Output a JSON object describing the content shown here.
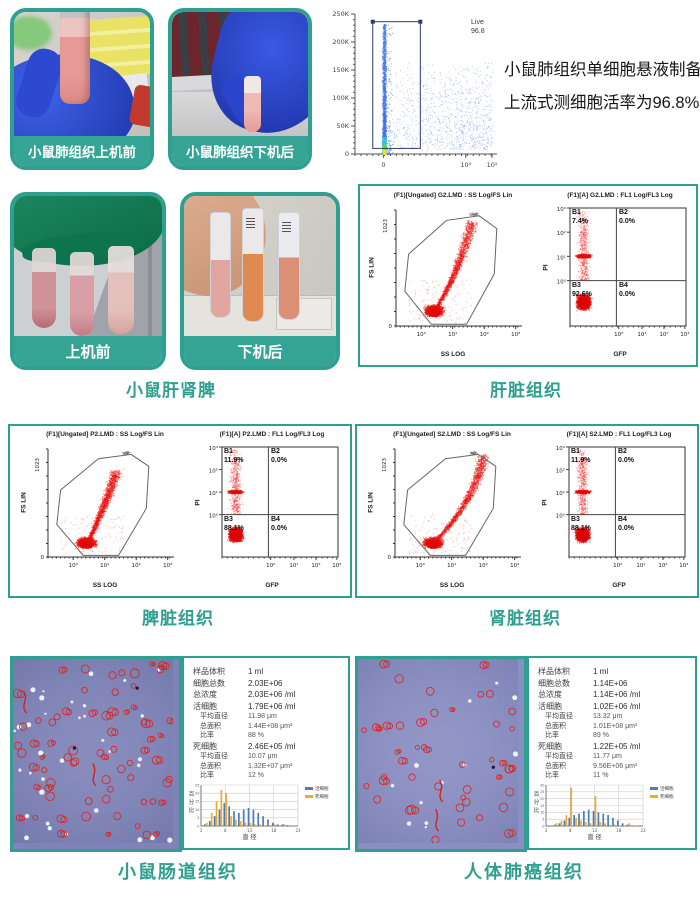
{
  "accent": "#2f9f90",
  "row1": {
    "photo_before_label": "小鼠肺组织上机前",
    "photo_after_label": "小鼠肺组织下机后",
    "desc_line1": "小鼠肺组织单细胞悬液制备",
    "desc_line2": "上流式测细胞活率为96.8%"
  },
  "row2": {
    "photo_before_label": "上机前",
    "photo_after_label": "下机后",
    "caption": "小鼠肝肾脾"
  },
  "chart_data": {
    "viability": {
      "type": "scatter",
      "gate_label": "Live",
      "gate_value": "96.8",
      "y_ticks": [
        "250K",
        "200K",
        "150K",
        "100K",
        "50K",
        "0"
      ],
      "x_ticks": [
        "0",
        "10⁴",
        "10⁵"
      ],
      "note": "dense vertical streak of viable cells inside rectangular Live gate, 96.8% live"
    },
    "flow_panels": [
      {
        "caption": "肝脏组织",
        "scatter": {
          "type": "scatter",
          "title": "(F1)[Ungated] G2.LMD : SS Log/FS Lin",
          "xlabel": "SS LOG",
          "ylabel": "FS LIN",
          "y_ticks": [
            "1023",
            "0"
          ],
          "x_ticks": [
            "10⁰",
            "10¹",
            "10²",
            "10³"
          ],
          "seed": 7,
          "arm_ctrl": [
            0.5,
            0.52
          ],
          "arm_end": [
            0.6,
            0.1
          ],
          "gate": [
            [
              0.28,
              0.985
            ],
            [
              0.07,
              0.7
            ],
            [
              0.1,
              0.38
            ],
            [
              0.4,
              0.09
            ],
            [
              0.66,
              0.05
            ],
            [
              0.8,
              0.16
            ],
            [
              0.78,
              0.55
            ],
            [
              0.56,
              0.985
            ]
          ]
        },
        "quad": {
          "type": "scatter",
          "title": "(F1)[A] G2.LMD : FL1 Log/FL3 Log",
          "xlabel": "GFP",
          "ylabel": "PI",
          "y_ticks": [
            "10³",
            "10²",
            "10¹",
            "10⁰"
          ],
          "x_ticks": [
            "10⁰",
            "10¹",
            "10²",
            "10³"
          ],
          "seed": 21,
          "quadrants": [
            {
              "name": "B1",
              "value": "7.4%"
            },
            {
              "name": "B2",
              "value": "0.0%"
            },
            {
              "name": "B3",
              "value": "92.6%"
            },
            {
              "name": "B4",
              "value": "0.0%"
            }
          ]
        }
      },
      {
        "caption": "脾脏组织",
        "scatter": {
          "type": "scatter",
          "title": "(F1)[Ungated] P2.LMD : SS Log/FS Lin",
          "xlabel": "SS LOG",
          "ylabel": "FS LIN",
          "y_ticks": [
            "1023",
            "0"
          ],
          "x_ticks": [
            "10⁰",
            "10¹",
            "10²",
            "10³"
          ],
          "seed": 13,
          "arm_ctrl": [
            0.44,
            0.56
          ],
          "arm_end": [
            0.54,
            0.2
          ],
          "gate": [
            [
              0.28,
              0.985
            ],
            [
              0.07,
              0.7
            ],
            [
              0.1,
              0.38
            ],
            [
              0.4,
              0.09
            ],
            [
              0.66,
              0.05
            ],
            [
              0.8,
              0.16
            ],
            [
              0.78,
              0.55
            ],
            [
              0.56,
              0.985
            ]
          ]
        },
        "quad": {
          "type": "scatter",
          "title": "(F1)[A] P2.LMD : FL1 Log/FL3 Log",
          "xlabel": "GFP",
          "ylabel": "PI",
          "y_ticks": [
            "10³",
            "10²",
            "10¹",
            "10⁰"
          ],
          "x_ticks": [
            "10⁰",
            "10¹",
            "10²",
            "10³"
          ],
          "seed": 31,
          "quadrants": [
            {
              "name": "B1",
              "value": "11.9%"
            },
            {
              "name": "B2",
              "value": "0.0%"
            },
            {
              "name": "B3",
              "value": "88.1%"
            },
            {
              "name": "B4",
              "value": "0.0%"
            }
          ]
        }
      },
      {
        "caption": "肾脏组织",
        "scatter": {
          "type": "scatter",
          "title": "(F1)[Ungated] S2.LMD : SS Log/FS Lin",
          "xlabel": "SS LOG",
          "ylabel": "FS LIN",
          "y_ticks": [
            "1023",
            "0"
          ],
          "x_ticks": [
            "10⁰",
            "10¹",
            "10²",
            "10³"
          ],
          "seed": 5,
          "arm_ctrl": [
            0.62,
            0.5
          ],
          "arm_end": [
            0.7,
            0.06
          ],
          "gate": [
            [
              0.28,
              0.985
            ],
            [
              0.07,
              0.7
            ],
            [
              0.1,
              0.38
            ],
            [
              0.4,
              0.09
            ],
            [
              0.66,
              0.05
            ],
            [
              0.8,
              0.16
            ],
            [
              0.78,
              0.55
            ],
            [
              0.56,
              0.985
            ]
          ]
        },
        "quad": {
          "type": "scatter",
          "title": "(F1)[A] S2.LMD : FL1 Log/FL3 Log",
          "xlabel": "GFP",
          "ylabel": "PI",
          "y_ticks": [
            "10³",
            "10²",
            "10¹",
            "10⁰"
          ],
          "x_ticks": [
            "10⁰",
            "10¹",
            "10²",
            "10³"
          ],
          "seed": 41,
          "quadrants": [
            {
              "name": "B1",
              "value": "11.9%"
            },
            {
              "name": "B2",
              "value": "0.0%"
            },
            {
              "name": "B3",
              "value": "88.1%"
            },
            {
              "name": "B4",
              "value": "0.0%"
            }
          ]
        }
      }
    ],
    "count_histograms": [
      {
        "type": "bar",
        "ylabel": "百分比",
        "xlabel": "直 径",
        "legend": [
          "活细胞",
          "死细胞"
        ],
        "colors": [
          "#4a7ebb",
          "#f0a832"
        ],
        "ymax": 25,
        "y_ticks": [
          0,
          5,
          10,
          15,
          20,
          25
        ],
        "x_ticks": [
          3,
          8,
          13,
          18,
          23
        ],
        "x_start": 4,
        "series": [
          {
            "name": "活细胞",
            "values": [
              1,
              3,
              6,
              10,
              14,
              12,
              9,
              8,
              10,
              11,
              10,
              8,
              6,
              4,
              2,
              1,
              1,
              0.5
            ]
          },
          {
            "name": "死细胞",
            "values": [
              2,
              8,
              15,
              22,
              20,
              6,
              4,
              3,
              2,
              2,
              1,
              1,
              0.5,
              0.5,
              1,
              0.5,
              1,
              0.5
            ]
          }
        ]
      },
      {
        "type": "bar",
        "ylabel": "百分比",
        "xlabel": "直 径",
        "legend": [
          "活细胞",
          "死细胞"
        ],
        "colors": [
          "#4a7ebb",
          "#f0a832"
        ],
        "ymax": 30,
        "y_ticks": [
          0,
          5,
          10,
          15,
          20,
          25,
          30
        ],
        "x_ticks": [
          3,
          8,
          13,
          18,
          23
        ],
        "x_start": 4,
        "series": [
          {
            "name": "活细胞",
            "values": [
              0,
              1,
              2,
              4,
              6,
              8,
              9,
              11,
              12,
              11,
              10,
              9,
              8,
              6,
              4,
              2,
              1,
              0.5
            ]
          },
          {
            "name": "死细胞",
            "values": [
              0,
              2,
              4,
              8,
              28,
              6,
              4,
              3,
              2,
              22,
              3,
              2,
              1,
              1,
              0.5,
              0.5,
              2,
              0.5
            ]
          }
        ]
      }
    ],
    "microscopy": [
      {
        "bg": "#7e83b8",
        "rings": 72,
        "white": 34,
        "squiggles": 2,
        "dark": 2,
        "seed": 3
      },
      {
        "bg": "#898ec3",
        "rings": 46,
        "white": 12,
        "squiggles": 2,
        "dark": 1,
        "seed": 9
      }
    ]
  },
  "count_panels": [
    {
      "caption": "小鼠肠道组织",
      "stats": [
        {
          "label": "样品体积",
          "value": "1 ml"
        },
        {
          "label": "细胞总数",
          "value": "2.03E+06"
        },
        {
          "label": "总浓度",
          "value": "2.03E+06 /ml"
        },
        {
          "label": "活细胞",
          "value": "1.79E+06 /ml"
        },
        {
          "label": "平均直径",
          "value": "11.98 μm",
          "sub": true
        },
        {
          "label": "总面积",
          "value": "1.44E+08 μm²",
          "sub": true
        },
        {
          "label": "比率",
          "value": "88 %",
          "sub": true
        },
        {
          "label": "死细胞",
          "value": "2.46E+05 /ml"
        },
        {
          "label": "平均直径",
          "value": "10.07 μm",
          "sub": true
        },
        {
          "label": "总面积",
          "value": "1.32E+07 μm²",
          "sub": true
        },
        {
          "label": "比率",
          "value": "12 %",
          "sub": true
        }
      ]
    },
    {
      "caption": "人体肺癌组织",
      "stats": [
        {
          "label": "样品体积",
          "value": "1 ml"
        },
        {
          "label": "细胞总数",
          "value": "1.14E+06"
        },
        {
          "label": "总浓度",
          "value": "1.14E+06 /ml"
        },
        {
          "label": "活细胞",
          "value": "1.02E+06 /ml"
        },
        {
          "label": "平均直径",
          "value": "13.32 μm",
          "sub": true
        },
        {
          "label": "总面积",
          "value": "1.01E+08 μm²",
          "sub": true
        },
        {
          "label": "比率",
          "value": "89 %",
          "sub": true
        },
        {
          "label": "死细胞",
          "value": "1.22E+05 /ml"
        },
        {
          "label": "平均直径",
          "value": "11.77 μm",
          "sub": true
        },
        {
          "label": "总面积",
          "value": "9.56E+06 μm²",
          "sub": true
        },
        {
          "label": "比率",
          "value": "11 %",
          "sub": true
        }
      ]
    }
  ]
}
